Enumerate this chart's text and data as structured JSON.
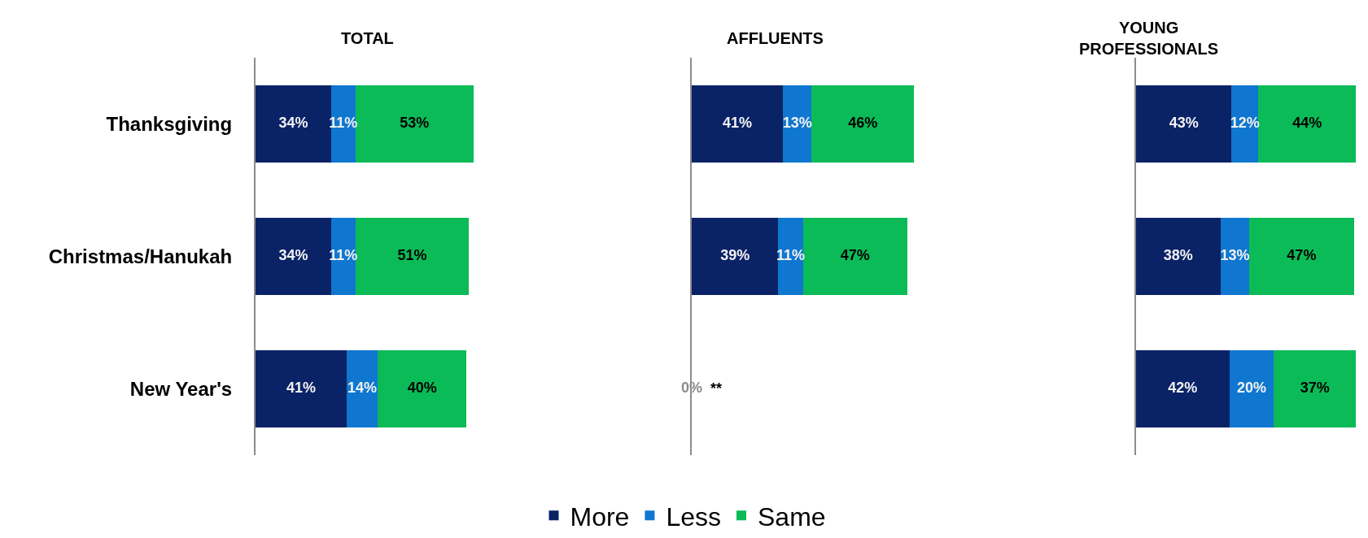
{
  "chart_data": [
    {
      "type": "bar",
      "orientation": "horizontal",
      "stacked": true,
      "title": "TOTAL",
      "categories": [
        "Thanksgiving",
        "Christmas/Hanukah",
        "New Year's"
      ],
      "tick_labels": "y",
      "legend": "bottom",
      "series": [
        {
          "name": "More",
          "color": "#0a2266",
          "values": [
            34,
            34,
            41
          ],
          "value_labels": [
            "34%",
            "34%",
            "41%"
          ]
        },
        {
          "name": "Less",
          "color": "#0f77d0",
          "values": [
            11,
            11,
            14
          ],
          "value_labels": [
            "11%",
            "11%",
            "14%"
          ]
        },
        {
          "name": "Same",
          "color": "#0bbb57",
          "values": [
            53,
            51,
            40
          ],
          "value_labels": [
            "53%",
            "51%",
            "40%"
          ]
        }
      ]
    },
    {
      "type": "bar",
      "orientation": "horizontal",
      "stacked": true,
      "title": "AFFLUENTS",
      "categories": [
        "Thanksgiving",
        "Christmas/Hanukah",
        "New Year's"
      ],
      "tick_labels": false,
      "annotations": [
        {
          "text": "**",
          "x": 0,
          "y": "New Year's"
        }
      ],
      "series": [
        {
          "color": "#0a2266",
          "values": [
            41,
            39,
            0
          ],
          "value_labels": [
            "41%",
            "39%",
            "0%"
          ]
        },
        {
          "color": "#0f77d0",
          "values": [
            13,
            11,
            null
          ],
          "value_labels": [
            "13%",
            "11%",
            null
          ]
        },
        {
          "color": "#0bbb57",
          "values": [
            46,
            47,
            null
          ],
          "value_labels": [
            "46%",
            "47%",
            null
          ]
        }
      ]
    },
    {
      "type": "bar",
      "orientation": "horizontal",
      "stacked": true,
      "title": "YOUNG\nPROFESSIONALS",
      "categories": [
        "Thanksgiving",
        "Christmas/Hanukah",
        "New Year's"
      ],
      "tick_labels": false,
      "series": [
        {
          "color": "#0a2266",
          "values": [
            43,
            38,
            42
          ],
          "value_labels": [
            "43%",
            "38%",
            "42%"
          ]
        },
        {
          "color": "#0f77d0",
          "values": [
            12,
            13,
            20
          ],
          "value_labels": [
            "12%",
            "13%",
            "20%"
          ]
        },
        {
          "color": "#0bbb57",
          "values": [
            44,
            47,
            37
          ],
          "value_labels": [
            "44%",
            "47%",
            "37%"
          ]
        }
      ]
    }
  ]
}
